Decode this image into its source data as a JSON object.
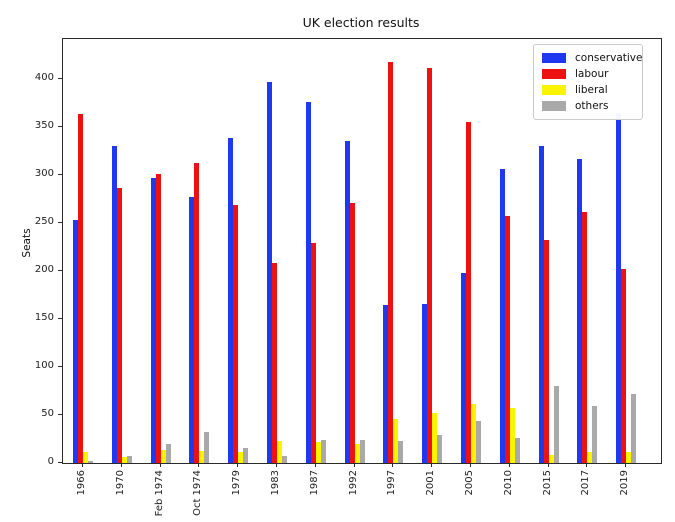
{
  "figure": {
    "title": "UK election results",
    "ylabel": "Seats"
  },
  "chart_data": {
    "type": "bar",
    "title": "UK election results",
    "xlabel": "",
    "ylabel": "Seats",
    "categories": [
      "1966",
      "1970",
      "Feb 1974",
      "Oct 1974",
      "1979",
      "1983",
      "1987",
      "1992",
      "1997",
      "2001",
      "2005",
      "2010",
      "2015",
      "2017",
      "2019"
    ],
    "series": [
      {
        "name": "conservative",
        "color": "#2038f0",
        "values": [
          253,
          330,
          297,
          277,
          339,
          397,
          376,
          336,
          165,
          166,
          198,
          306,
          330,
          317,
          365
        ]
      },
      {
        "name": "labour",
        "color": "#ee1111",
        "values": [
          364,
          287,
          301,
          313,
          269,
          209,
          229,
          271,
          418,
          412,
          355,
          258,
          232,
          262,
          202
        ]
      },
      {
        "name": "liberal",
        "color": "#fbf300",
        "values": [
          12,
          6,
          14,
          13,
          11,
          23,
          22,
          20,
          46,
          52,
          62,
          57,
          8,
          12,
          11
        ]
      },
      {
        "name": "others",
        "color": "#a9a9a9",
        "values": [
          2,
          7,
          20,
          32,
          16,
          7,
          24,
          24,
          23,
          29,
          44,
          26,
          80,
          59,
          72
        ]
      }
    ],
    "yticks": [
      0,
      50,
      100,
      150,
      200,
      250,
      300,
      350,
      400
    ],
    "ylim": [
      0,
      442
    ],
    "grid": false,
    "legend_position": "upper right",
    "bar_orientation": "vertical",
    "x_tick_label_rotation": "vertical"
  }
}
